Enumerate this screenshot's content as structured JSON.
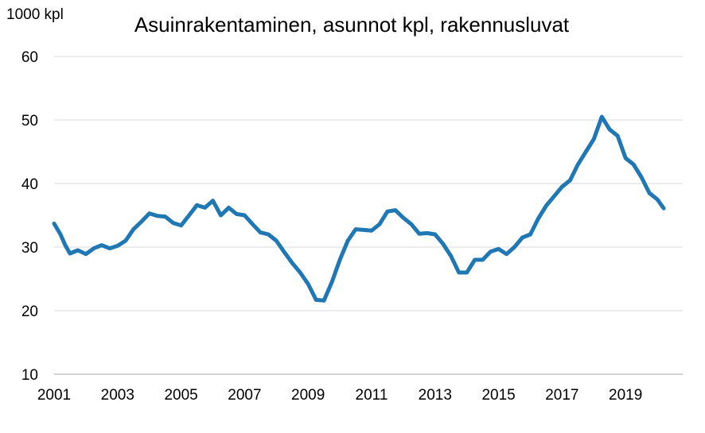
{
  "chart_data": {
    "type": "line",
    "title": "Asuinrakentaminen, asunnot kpl, rakennusluvat",
    "ylabel": "1000 kpl",
    "xlabel": "",
    "ylim": [
      10,
      60
    ],
    "yticks": [
      "10",
      "20",
      "30",
      "40",
      "50",
      "60"
    ],
    "xticks": [
      "2001",
      "2003",
      "2005",
      "2007",
      "2009",
      "2011",
      "2013",
      "2015",
      "2017",
      "2019"
    ],
    "xlim": [
      2001.0,
      2020.8
    ],
    "grid": true,
    "legend": "none",
    "line_color": "#1f77b4",
    "series": [
      {
        "x": [
          2001.0,
          2001.2,
          2001.35,
          2001.5,
          2001.75,
          2002.0,
          2002.25,
          2002.5,
          2002.75,
          2003.0,
          2003.25,
          2003.5,
          2003.75,
          2004.0,
          2004.25,
          2004.5,
          2004.75,
          2005.0,
          2005.25,
          2005.5,
          2005.75,
          2006.0,
          2006.25,
          2006.5,
          2006.75,
          2007.0,
          2007.25,
          2007.5,
          2007.75,
          2008.0,
          2008.25,
          2008.5,
          2008.75,
          2009.0,
          2009.25,
          2009.5,
          2009.75,
          2010.0,
          2010.25,
          2010.5,
          2010.75,
          2011.0,
          2011.25,
          2011.5,
          2011.75,
          2012.0,
          2012.25,
          2012.5,
          2012.75,
          2013.0,
          2013.25,
          2013.5,
          2013.75,
          2014.0,
          2014.25,
          2014.5,
          2014.75,
          2015.0,
          2015.25,
          2015.5,
          2015.75,
          2016.0,
          2016.25,
          2016.5,
          2016.75,
          2017.0,
          2017.25,
          2017.5,
          2017.75,
          2018.0,
          2018.25,
          2018.5,
          2018.75,
          2019.0,
          2019.25,
          2019.5,
          2019.75,
          2020.0,
          2020.2
        ],
        "y": [
          33.7,
          32.0,
          30.3,
          29.0,
          29.5,
          28.9,
          29.8,
          30.3,
          29.8,
          30.2,
          31.0,
          32.8,
          34.0,
          35.3,
          34.9,
          34.8,
          33.8,
          33.4,
          35.0,
          36.6,
          36.2,
          37.3,
          35.0,
          36.2,
          35.2,
          35.0,
          33.6,
          32.3,
          32.0,
          31.0,
          29.2,
          27.5,
          26.0,
          24.2,
          21.7,
          21.6,
          24.5,
          28.0,
          31.0,
          32.8,
          32.7,
          32.6,
          33.6,
          35.6,
          35.8,
          34.6,
          33.6,
          32.1,
          32.2,
          32.0,
          30.5,
          28.6,
          26.0,
          26.0,
          28.0,
          28.0,
          29.3,
          29.7,
          28.9,
          30.0,
          31.5,
          32.0,
          34.5,
          36.5,
          38.0,
          39.5,
          40.5,
          43.0,
          45.0,
          47.0,
          50.5,
          48.5,
          47.5,
          44.0,
          43.0,
          41.0,
          38.5,
          37.5,
          36.1
        ]
      }
    ]
  }
}
